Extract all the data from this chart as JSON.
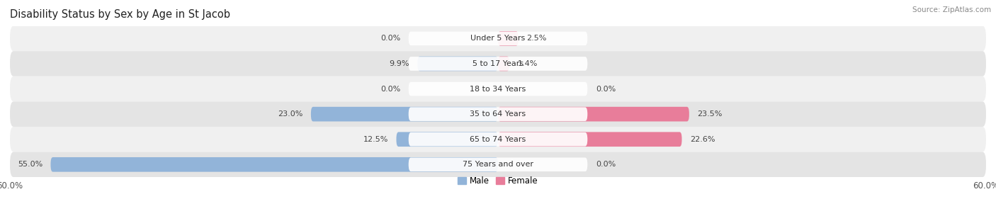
{
  "title": "Disability Status by Sex by Age in St Jacob",
  "source": "Source: ZipAtlas.com",
  "categories": [
    "Under 5 Years",
    "5 to 17 Years",
    "18 to 34 Years",
    "35 to 64 Years",
    "65 to 74 Years",
    "75 Years and over"
  ],
  "male_values": [
    0.0,
    9.9,
    0.0,
    23.0,
    12.5,
    55.0
  ],
  "female_values": [
    2.5,
    1.4,
    0.0,
    23.5,
    22.6,
    0.0
  ],
  "male_color": "#92b4d9",
  "female_color": "#e87d9a",
  "male_color_light": "#b8d0e8",
  "female_color_light": "#f0adbf",
  "row_bg_light": "#f0f0f0",
  "row_bg_dark": "#e4e4e4",
  "x_max": 60.0,
  "legend_male": "Male",
  "legend_female": "Female",
  "figsize": [
    14.06,
    3.05
  ],
  "dpi": 100
}
